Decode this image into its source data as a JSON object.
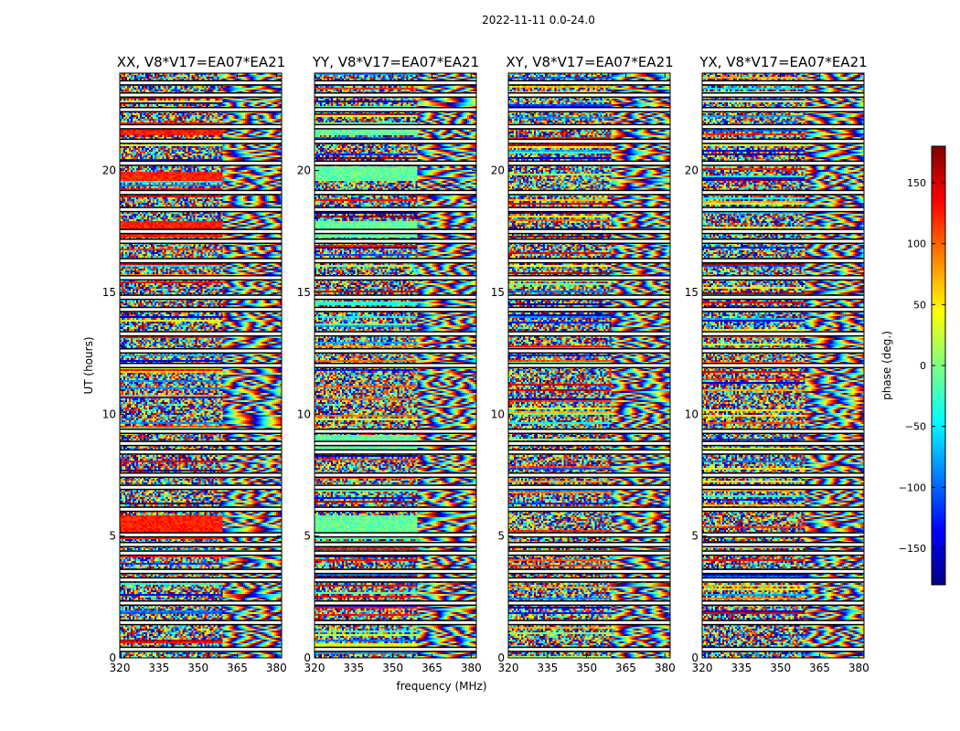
{
  "chart_data": {
    "type": "heatmap",
    "suptitle": "2022-11-11 0.0-24.0",
    "xlabel": "frequency (MHz)",
    "ylabel": "UT (hours)",
    "xlim": [
      320,
      382
    ],
    "ylim": [
      0,
      24
    ],
    "xticks": [
      320,
      335,
      350,
      365,
      380
    ],
    "yticks": [
      0,
      5,
      10,
      15,
      20
    ],
    "panels": [
      {
        "title": "XX, V8*V17=EA07*EA21",
        "pol": "XX"
      },
      {
        "title": "YY, V8*V17=EA07*EA21",
        "pol": "YY"
      },
      {
        "title": "XY, V8*V17=EA07*EA21",
        "pol": "XY"
      },
      {
        "title": "YX, V8*V17=EA07*EA21",
        "pol": "YX"
      }
    ],
    "colorbar": {
      "label": "phase (deg.)",
      "range": [
        -180,
        180
      ],
      "ticks": [
        -150,
        -100,
        -50,
        0,
        50,
        100,
        150
      ],
      "colormap": "jet"
    },
    "flagged_ut_hours": [
      0.35,
      1.45,
      2.25,
      3.2,
      3.55,
      4.3,
      4.65,
      5.05,
      6.1,
      7.0,
      7.5,
      8.45,
      8.8,
      9.3,
      12.0,
      12.6,
      13.3,
      14.3,
      14.8,
      15.6,
      16.3,
      17.1,
      17.5,
      18.4,
      19.1,
      20.3,
      21.2,
      21.8,
      22.5,
      23.1,
      23.6
    ],
    "colors": {
      "background": "#ffffff",
      "axis": "#000000",
      "flag": "#ffffff"
    }
  }
}
